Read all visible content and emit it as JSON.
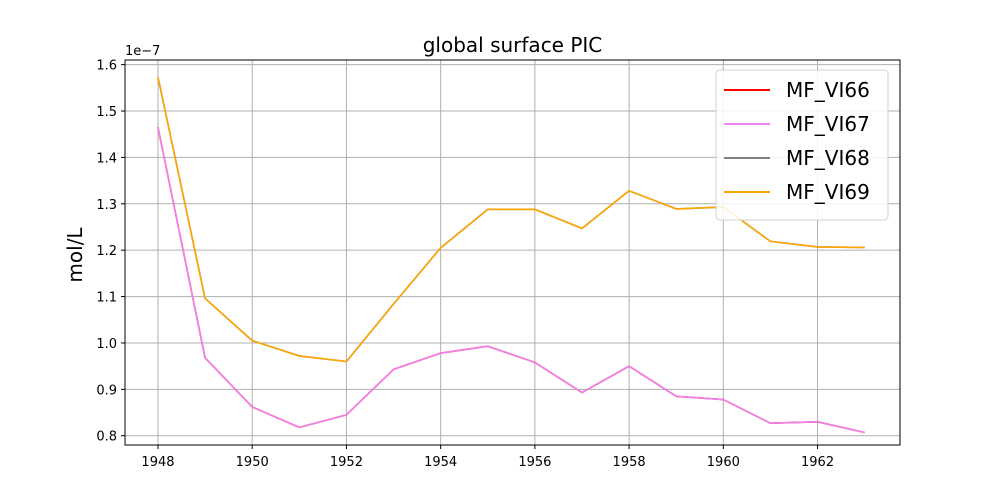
{
  "chart_data": {
    "type": "line",
    "title": "global surface PIC",
    "xlabel": "",
    "ylabel": "mol/L",
    "y_offset_label": "1e−7",
    "xlim": [
      1947.3,
      1963.75
    ],
    "ylim": [
      0.78,
      1.61
    ],
    "x_ticks": [
      1948,
      1950,
      1952,
      1954,
      1956,
      1958,
      1960,
      1962
    ],
    "y_ticks": [
      0.8,
      0.9,
      1.0,
      1.1,
      1.2,
      1.3,
      1.4,
      1.5,
      1.6
    ],
    "y_tick_labels": [
      "0.8",
      "0.9",
      "1.0",
      "1.1",
      "1.2",
      "1.3",
      "1.4",
      "1.5",
      "1.6"
    ],
    "grid": true,
    "legend_position": "top-right",
    "x": [
      1948,
      1949,
      1950,
      1951,
      1952,
      1953,
      1954,
      1955,
      1956,
      1957,
      1958,
      1959,
      1960,
      1961,
      1962,
      1963
    ],
    "series": [
      {
        "name": "MF_VI66",
        "color": "#ff0000",
        "values": [
          1.465,
          0.968,
          0.862,
          0.818,
          0.845,
          0.943,
          0.978,
          0.993,
          0.958,
          0.893,
          0.95,
          0.885,
          0.878,
          0.827,
          0.83,
          0.807
        ]
      },
      {
        "name": "MF_VI67",
        "color": "#ee82ee",
        "values": [
          1.465,
          0.968,
          0.862,
          0.818,
          0.845,
          0.943,
          0.978,
          0.993,
          0.958,
          0.893,
          0.95,
          0.885,
          0.878,
          0.827,
          0.83,
          0.807
        ]
      },
      {
        "name": "MF_VI68",
        "color": "#808080",
        "values": [
          1.573,
          1.096,
          1.005,
          0.972,
          0.96,
          1.084,
          1.205,
          1.288,
          1.288,
          1.247,
          1.328,
          1.289,
          1.293,
          1.219,
          1.207,
          1.206
        ]
      },
      {
        "name": "MF_VI69",
        "color": "#ffa500",
        "values": [
          1.573,
          1.096,
          1.005,
          0.972,
          0.96,
          1.084,
          1.205,
          1.288,
          1.288,
          1.247,
          1.328,
          1.289,
          1.293,
          1.219,
          1.207,
          1.206
        ]
      }
    ]
  }
}
